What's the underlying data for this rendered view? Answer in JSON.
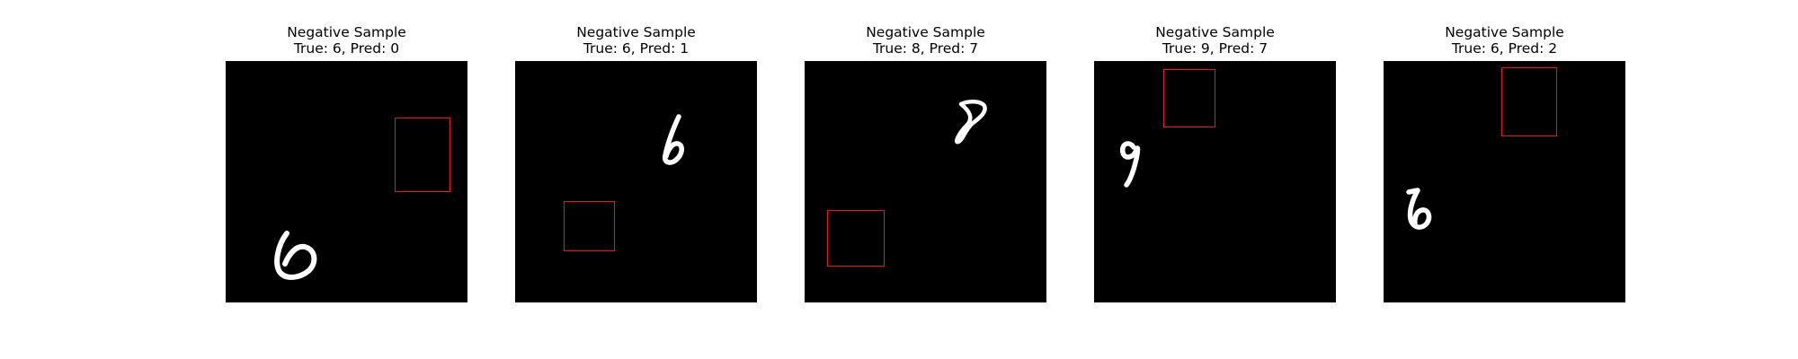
{
  "figure": {
    "panels": [
      {
        "heading": "Negative Sample",
        "subtitle": "True: 6, Pred: 0",
        "digit_icon": "handwritten-digit-6"
      },
      {
        "heading": "Negative Sample",
        "subtitle": "True: 6, Pred: 1",
        "digit_icon": "handwritten-digit-6"
      },
      {
        "heading": "Negative Sample",
        "subtitle": "True: 8, Pred: 7",
        "digit_icon": "handwritten-digit-8"
      },
      {
        "heading": "Negative Sample",
        "subtitle": "True: 9, Pred: 7",
        "digit_icon": "handwritten-digit-9"
      },
      {
        "heading": "Negative Sample",
        "subtitle": "True: 6, Pred: 2",
        "digit_icon": "handwritten-digit-6"
      }
    ],
    "colors": {
      "image_background": "#000000",
      "digit_stroke": "#ffffff",
      "box_color": "#e41a1c"
    }
  }
}
